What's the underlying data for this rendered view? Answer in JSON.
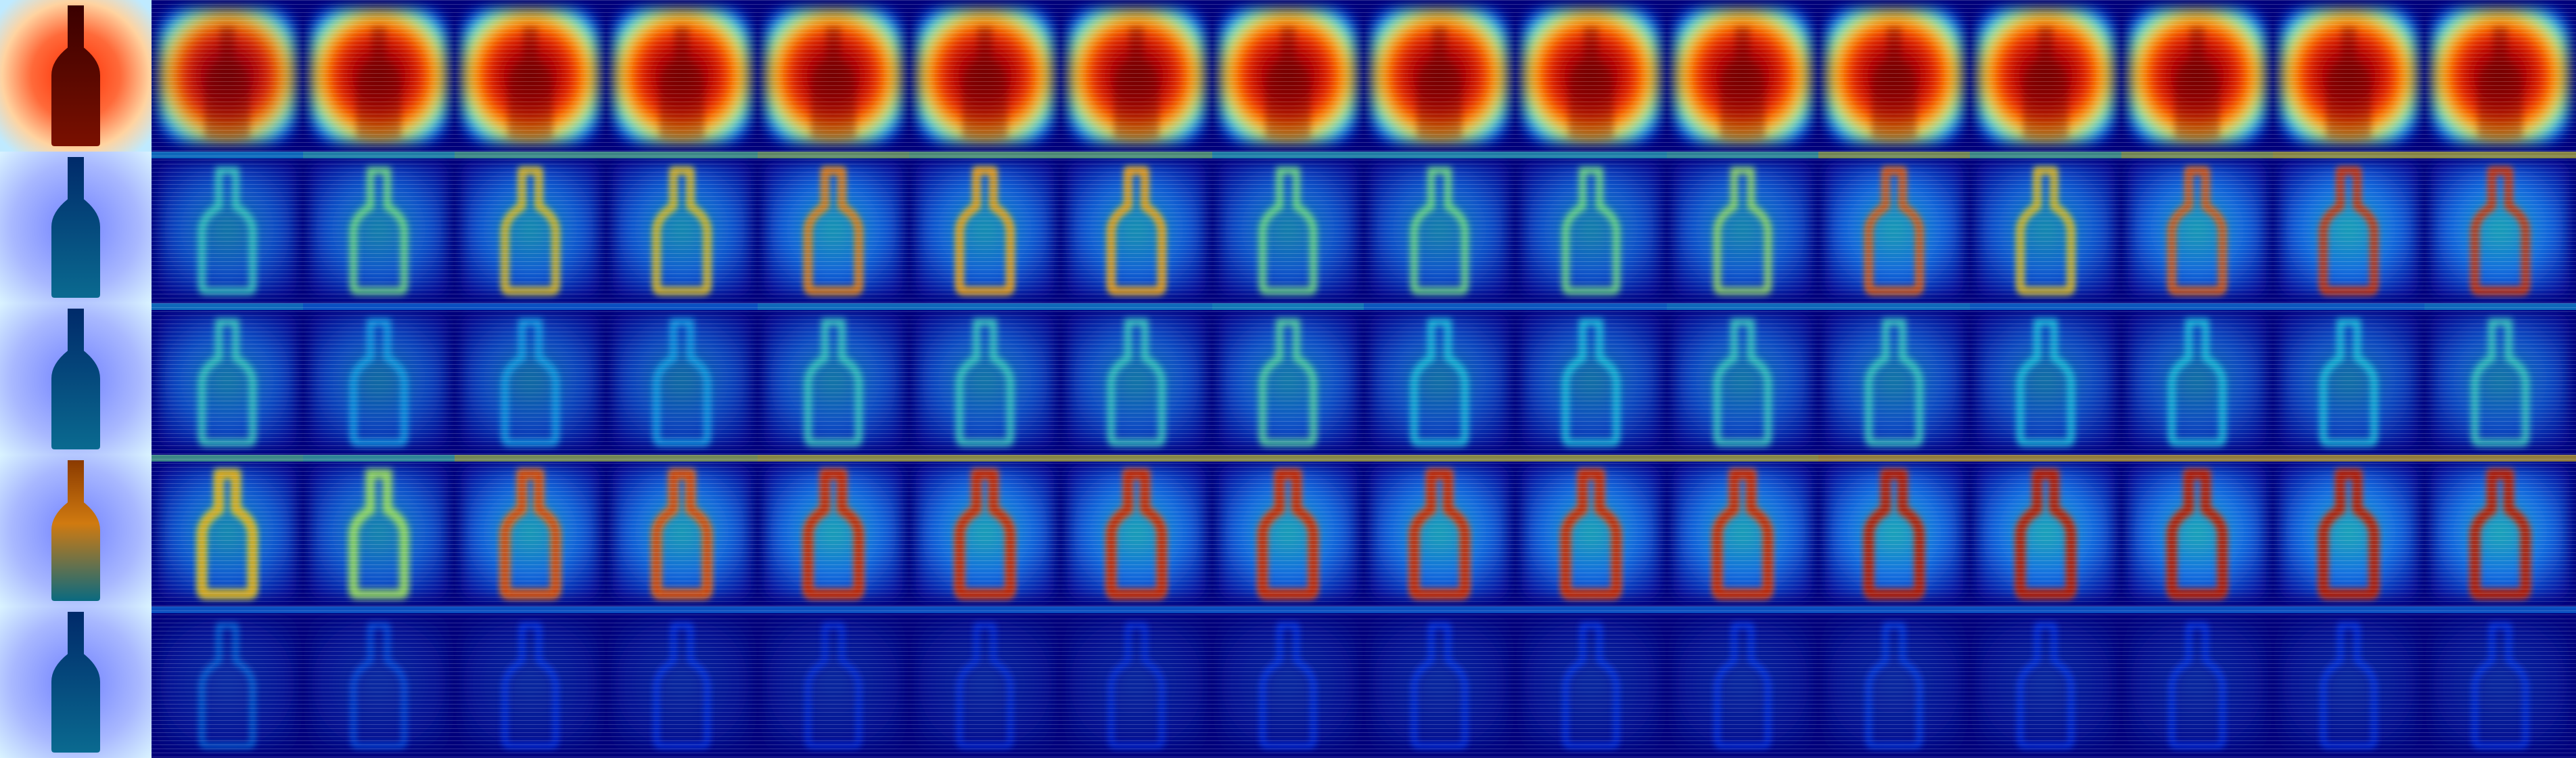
{
  "figure": {
    "subject": "bottle",
    "colormap": "jet",
    "background_color": "#00007a"
  },
  "grid": {
    "rows": [
      {
        "name": "row-1",
        "pattern": "full-blob",
        "input_tint": "warm",
        "intensities": [
          1.0,
          0.8,
          0.95,
          0.98,
          0.98,
          0.95,
          0.95,
          0.95,
          0.98,
          0.95,
          0.98,
          0.98,
          0.98,
          0.98,
          0.98,
          0.98,
          0.98
        ]
      },
      {
        "name": "row-2",
        "pattern": "outline",
        "input_tint": "cool",
        "intensities": [
          0.0,
          0.45,
          0.55,
          0.65,
          0.65,
          0.75,
          0.7,
          0.7,
          0.55,
          0.55,
          0.55,
          0.6,
          0.8,
          0.65,
          0.8,
          0.85,
          0.85
        ]
      },
      {
        "name": "row-3",
        "pattern": "faint-outline",
        "input_tint": "cool",
        "intensities": [
          0.0,
          0.45,
          0.35,
          0.35,
          0.35,
          0.45,
          0.45,
          0.45,
          0.5,
          0.4,
          0.4,
          0.45,
          0.45,
          0.4,
          0.4,
          0.4,
          0.45
        ]
      },
      {
        "name": "row-4",
        "pattern": "strong-outline",
        "input_tint": "mixed",
        "intensities": [
          0.5,
          0.65,
          0.6,
          0.8,
          0.8,
          0.85,
          0.85,
          0.85,
          0.85,
          0.85,
          0.85,
          0.85,
          0.9,
          0.9,
          0.9,
          0.9,
          0.9
        ]
      },
      {
        "name": "row-5",
        "pattern": "dim",
        "input_tint": "cool",
        "intensities": [
          0.0,
          0.3,
          0.25,
          0.2,
          0.2,
          0.18,
          0.18,
          0.18,
          0.2,
          0.2,
          0.2,
          0.2,
          0.22,
          0.2,
          0.2,
          0.2,
          0.2
        ]
      }
    ]
  }
}
